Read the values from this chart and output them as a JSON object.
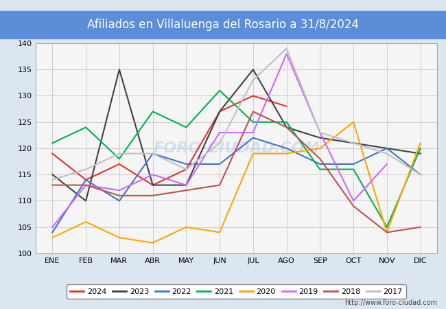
{
  "title": "Afiliados en Villaluenga del Rosario a 31/8/2024",
  "title_color": "#ffffff",
  "title_bg_color": "#5b8dd9",
  "ylim": [
    100,
    140
  ],
  "yticks": [
    100,
    105,
    110,
    115,
    120,
    125,
    130,
    135,
    140
  ],
  "months": [
    "ENE",
    "FEB",
    "MAR",
    "ABR",
    "MAY",
    "JUN",
    "JUL",
    "AGO",
    "SEP",
    "OCT",
    "NOV",
    "DIC"
  ],
  "series": {
    "2024": {
      "color": "#e8312a",
      "data": [
        119,
        114,
        117,
        113,
        116,
        127,
        130,
        128,
        null,
        null,
        null,
        null
      ]
    },
    "2023": {
      "color": "#404040",
      "data": [
        115,
        110,
        135,
        113,
        113,
        127,
        135,
        124,
        122,
        121,
        120,
        119
      ]
    },
    "2022": {
      "color": "#4472c4",
      "data": [
        104,
        114,
        110,
        119,
        117,
        117,
        122,
        120,
        117,
        117,
        120,
        115
      ]
    },
    "2021": {
      "color": "#00b050",
      "data": [
        121,
        124,
        118,
        127,
        124,
        131,
        125,
        125,
        116,
        116,
        105,
        120
      ]
    },
    "2020": {
      "color": "#ffa500",
      "data": [
        103,
        106,
        103,
        102,
        105,
        104,
        119,
        119,
        120,
        125,
        104,
        121
      ]
    },
    "2019": {
      "color": "#cc66ff",
      "data": [
        105,
        113,
        112,
        115,
        113,
        123,
        123,
        138,
        123,
        110,
        117,
        null
      ]
    },
    "2018": {
      "color": "#c0504d",
      "data": [
        113,
        113,
        111,
        111,
        112,
        113,
        127,
        124,
        118,
        109,
        104,
        105
      ]
    },
    "2017": {
      "color": "#c0c0c0",
      "data": [
        114,
        116,
        119,
        119,
        116,
        121,
        133,
        139,
        123,
        121,
        119,
        115
      ]
    }
  },
  "watermark": "FORO-CIUDAD.COM",
  "url": "http://www.foro-ciudad.com",
  "bg_color": "#dce6f1",
  "plot_bg_color": "#f5f5f5",
  "grid_color": "#cccccc",
  "legend_years": [
    "2024",
    "2023",
    "2022",
    "2021",
    "2020",
    "2019",
    "2018",
    "2017"
  ]
}
